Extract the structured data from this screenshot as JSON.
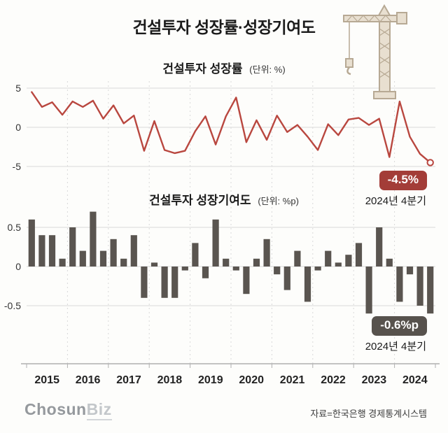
{
  "title": "건설투자 성장률·성장기여도",
  "colors": {
    "line": "#b9473f",
    "bar": "#5a5550",
    "badge_line_bg": "#a33d38",
    "badge_bar_bg": "#57524d",
    "grid": "#d9d9d9",
    "axis": "#b0b0b0",
    "tick_text": "#333333",
    "year_text": "#222222"
  },
  "chart_data": [
    {
      "type": "line",
      "title": "건설투자 성장률",
      "unit_label": "(단위: %)",
      "series_name": "건설투자 성장률(%)",
      "x_period": "2015Q1-2024Q4 (quarterly)",
      "values": [
        4.5,
        2.6,
        3.2,
        1.6,
        3.3,
        2.6,
        3.4,
        1.1,
        2.8,
        0.5,
        1.5,
        -3.0,
        0.8,
        -2.9,
        -3.3,
        -3.0,
        -0.5,
        1.4,
        -2.2,
        1.4,
        3.8,
        -1.9,
        0.9,
        -1.6,
        1.5,
        -0.6,
        0.3,
        -1.2,
        -2.9,
        0.4,
        -1.0,
        1.0,
        1.2,
        0.3,
        1.1,
        -3.8,
        3.3,
        -1.2,
        -3.4,
        -4.5
      ],
      "ylim": [
        -5,
        5
      ],
      "yticks": [
        "5",
        "0",
        "-5"
      ],
      "color": "#b9473f",
      "end_marker": "open-circle",
      "annotation": {
        "badge": "-4.5%",
        "caption": "2024년 4분기"
      }
    },
    {
      "type": "bar",
      "title": "건설투자 성장기여도",
      "unit_label": "(단위: %p)",
      "series_name": "건설투자 성장기여도(%p)",
      "x_period": "2015Q1-2024Q4 (quarterly)",
      "values": [
        0.6,
        0.4,
        0.4,
        0.1,
        0.5,
        0.2,
        0.7,
        0.2,
        0.35,
        0.1,
        0.4,
        -0.4,
        0.05,
        -0.4,
        -0.4,
        -0.05,
        0.3,
        -0.15,
        0.6,
        0.1,
        -0.05,
        -0.35,
        0.1,
        0.35,
        -0.1,
        -0.3,
        0.2,
        -0.45,
        -0.05,
        0.2,
        0.05,
        0.15,
        0.3,
        -0.6,
        0.5,
        0.1,
        -0.45,
        -0.1,
        -0.5,
        -0.6
      ],
      "ylim": [
        -0.7,
        0.7
      ],
      "yticks": [
        "0.5",
        "0",
        "-0.5"
      ],
      "color": "#5a5550",
      "annotation": {
        "badge": "-0.6%p",
        "caption": "2024년 4분기"
      }
    }
  ],
  "x_axis": {
    "years": [
      "2015",
      "2016",
      "2017",
      "2018",
      "2019",
      "2020",
      "2021",
      "2022",
      "2023",
      "2024"
    ]
  },
  "footer": {
    "logo_part1": "Chosun",
    "logo_part2": "Biz",
    "source": "자료=한국은행 경제통계시스템"
  }
}
